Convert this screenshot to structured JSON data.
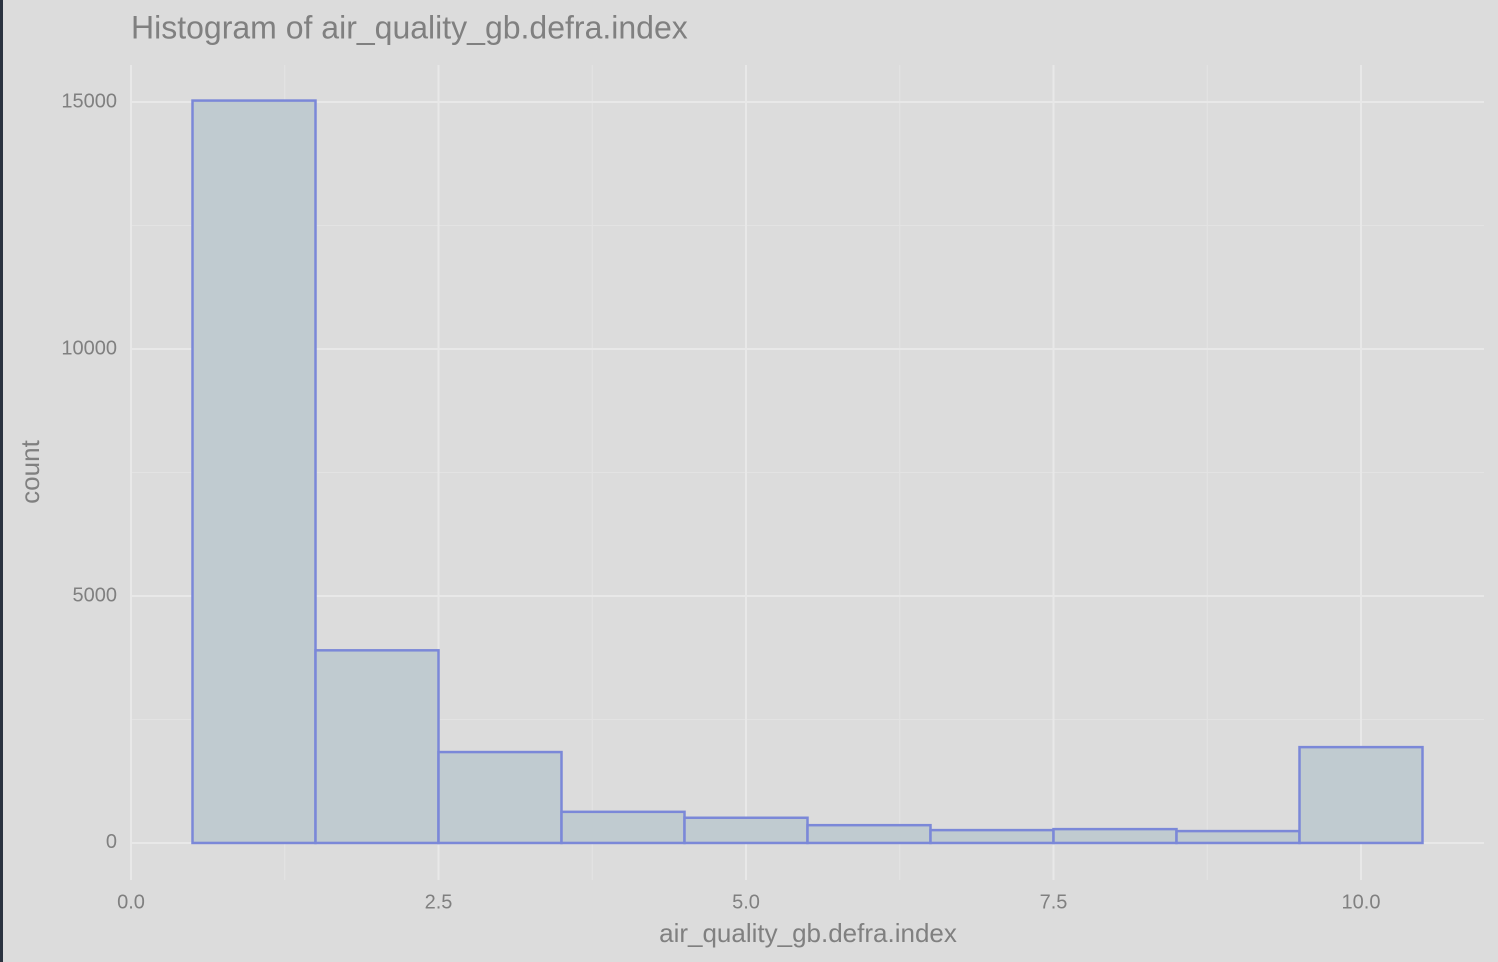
{
  "chart_data": {
    "type": "histogram",
    "title": "Histogram of air_quality_gb.defra.index",
    "x_label": "air_quality_gb.defra.index",
    "y_label": "count",
    "bins": [
      0.5,
      1.5,
      2.5,
      3.5,
      4.5,
      5.5,
      6.5,
      7.5,
      8.5,
      9.5,
      10.5
    ],
    "counts": [
      15030,
      3900,
      1840,
      630,
      510,
      360,
      260,
      280,
      240,
      1940
    ],
    "color": "#c0cbd0",
    "edge_color": "#7b88d8",
    "xlim": [
      0,
      11
    ],
    "ylim": [
      -750,
      15750
    ],
    "xticks": [
      {
        "value": 0,
        "label": "0.0"
      },
      {
        "value": 2.5,
        "label": "2.5"
      },
      {
        "value": 5,
        "label": "5.0"
      },
      {
        "value": 7.5,
        "label": "7.5"
      },
      {
        "value": 10,
        "label": "10.0"
      }
    ],
    "yticks": [
      0,
      5000,
      10000,
      15000
    ],
    "grid": true
  }
}
